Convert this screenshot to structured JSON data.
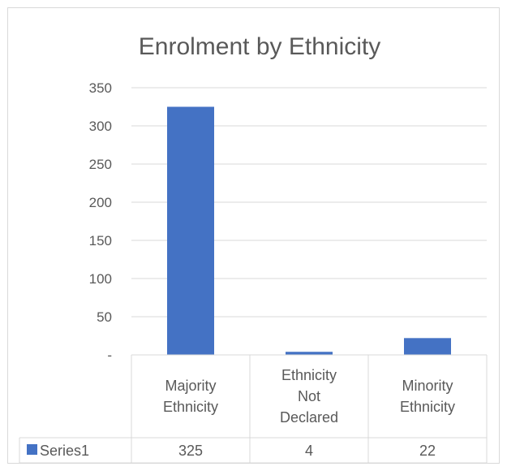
{
  "chart_data": {
    "type": "bar",
    "title": "Enrolment by Ethnicity",
    "categories": [
      [
        "Majority",
        "Ethnicity"
      ],
      [
        "Ethnicity",
        "Not",
        "Declared"
      ],
      [
        "Minority",
        "Ethnicity"
      ]
    ],
    "series": [
      {
        "name": "Series1",
        "values": [
          325,
          4,
          22
        ],
        "color": "#4472c4"
      }
    ],
    "data_table_values": [
      "325",
      "4",
      "22"
    ],
    "yticks": [
      "-",
      "50",
      "100",
      "150",
      "200",
      "250",
      "300",
      "350"
    ],
    "ylim": [
      0,
      350
    ],
    "grid": true,
    "legend": "data-table"
  }
}
